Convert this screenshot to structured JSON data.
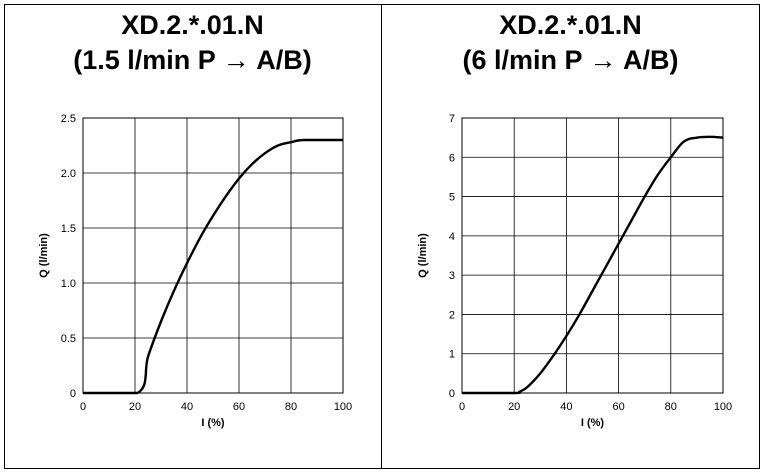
{
  "chart_data": [
    {
      "type": "line",
      "title": "XD.2.*.01.N",
      "subtitle": "(1.5 l/min P → A/B)",
      "xlabel": "I (%)",
      "ylabel": "Q (l/min)",
      "xlim": [
        0,
        100
      ],
      "ylim": [
        0,
        2.5
      ],
      "xticks": [
        "0",
        "20",
        "40",
        "60",
        "80",
        "100"
      ],
      "yticks": [
        "0",
        "0.5",
        "1.0",
        "1.5",
        "2.0",
        "2.5"
      ],
      "grid": true,
      "series": [
        {
          "x": [
            0,
            21,
            25,
            30,
            35,
            40,
            45,
            50,
            55,
            60,
            65,
            70,
            75,
            80,
            85,
            100
          ],
          "y": [
            0,
            0,
            0.33,
            0.65,
            0.93,
            1.18,
            1.41,
            1.61,
            1.79,
            1.95,
            2.08,
            2.18,
            2.25,
            2.28,
            2.3,
            2.3
          ]
        }
      ]
    },
    {
      "type": "line",
      "title": "XD.2.*.01.N",
      "subtitle": "(6 l/min P → A/B)",
      "xlabel": "I (%)",
      "ylabel": "Q (l/min)",
      "xlim": [
        0,
        100
      ],
      "ylim": [
        0,
        7
      ],
      "xticks": [
        "0",
        "20",
        "40",
        "60",
        "80",
        "100"
      ],
      "yticks": [
        "0",
        "1",
        "2",
        "3",
        "4",
        "5",
        "6",
        "7"
      ],
      "grid": true,
      "series": [
        {
          "x": [
            0,
            20,
            22,
            25,
            30,
            35,
            40,
            45,
            50,
            55,
            60,
            65,
            70,
            75,
            80,
            85,
            90,
            95,
            100
          ],
          "y": [
            0,
            0,
            0.03,
            0.15,
            0.5,
            0.95,
            1.45,
            2.0,
            2.6,
            3.2,
            3.8,
            4.4,
            5.0,
            5.55,
            6.0,
            6.4,
            6.5,
            6.52,
            6.5
          ]
        }
      ]
    }
  ]
}
